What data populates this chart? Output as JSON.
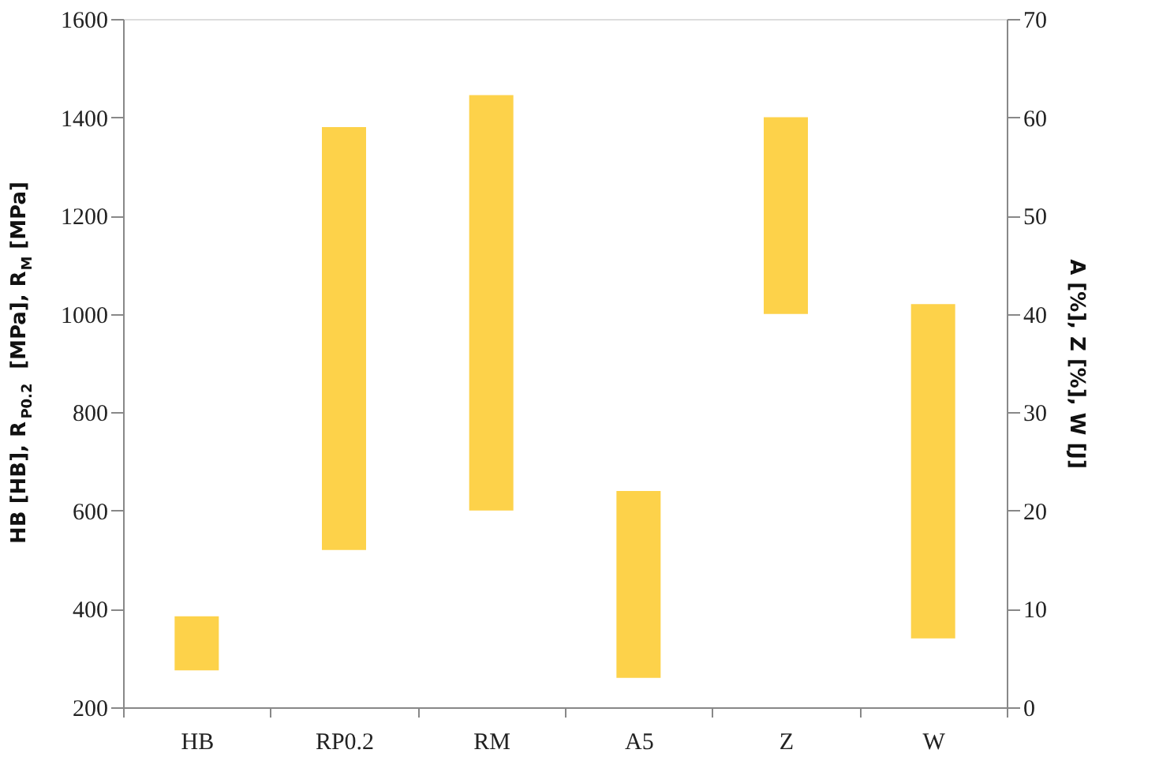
{
  "chart_data": {
    "type": "bar",
    "categories": [
      "HB",
      "RP0.2",
      "RM",
      "A5",
      "Z",
      "W"
    ],
    "ylabel": "HB [HB], R$_{P0.2}$ [MPa], R$_{M}$ [MPa]",
    "y2label": "A [%], Z [%], W [J]",
    "series": [
      {
        "color": "#fdd24a",
        "axis": "y",
        "base": [
          275,
          520,
          600,
          null,
          null,
          null
        ],
        "values": [
          110,
          860,
          845,
          null,
          null,
          null
        ]
      },
      {
        "color": "#fdd24a",
        "axis": "y2",
        "base": [
          null,
          null,
          null,
          3,
          40,
          7
        ],
        "values": [
          null,
          null,
          null,
          19,
          20,
          34
        ]
      }
    ],
    "ylim": [
      200,
      1600
    ],
    "yticks": [
      200,
      400,
      600,
      800,
      1000,
      1200,
      1400,
      1600
    ],
    "y2lim": [
      0,
      70
    ],
    "y2ticks": [
      0,
      10,
      20,
      30,
      40,
      50,
      60,
      70
    ],
    "grid": false
  }
}
